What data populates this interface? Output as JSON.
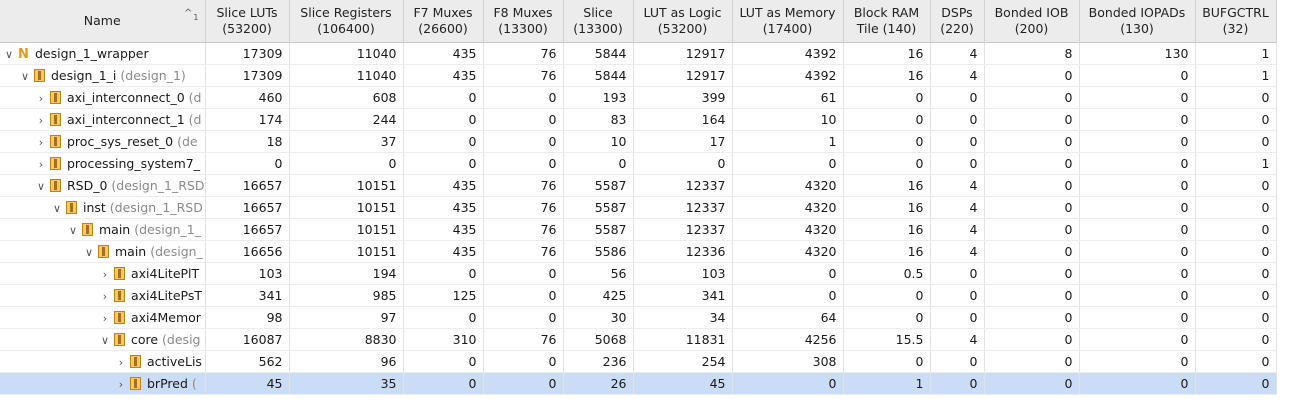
{
  "columns": [
    {
      "label": "Name",
      "sub": ""
    },
    {
      "label": "Slice LUTs",
      "sub": "(53200)"
    },
    {
      "label": "Slice Registers",
      "sub": "(106400)"
    },
    {
      "label": "F7 Muxes",
      "sub": "(26600)"
    },
    {
      "label": "F8 Muxes",
      "sub": "(13300)"
    },
    {
      "label": "Slice",
      "sub": "(13300)"
    },
    {
      "label": "LUT as Logic",
      "sub": "(53200)"
    },
    {
      "label": "LUT as Memory",
      "sub": "(17400)"
    },
    {
      "label": "Block RAM",
      "sub": "Tile (140)"
    },
    {
      "label": "DSPs",
      "sub": "(220)"
    },
    {
      "label": "Bonded IOB",
      "sub": "(200)"
    },
    {
      "label": "Bonded IOPADs",
      "sub": "(130)"
    },
    {
      "label": "BUFGCTRL",
      "sub": "(32)"
    }
  ],
  "sort_indicator": {
    "arrow": "^",
    "rank": "1"
  },
  "rows": [
    {
      "depth": 0,
      "expanded": true,
      "icon": "netlist-top-icon",
      "name": "design_1_wrapper",
      "hint": "",
      "values": [
        "17309",
        "11040",
        "435",
        "76",
        "5844",
        "12917",
        "4392",
        "16",
        "4",
        "8",
        "130",
        "1"
      ]
    },
    {
      "depth": 1,
      "expanded": true,
      "icon": "module-icon",
      "name": "design_1_i",
      "hint": " (design_1)",
      "values": [
        "17309",
        "11040",
        "435",
        "76",
        "5844",
        "12917",
        "4392",
        "16",
        "4",
        "0",
        "0",
        "1"
      ]
    },
    {
      "depth": 2,
      "expanded": false,
      "icon": "module-icon",
      "name": "axi_interconnect_0",
      "hint": " (d",
      "values": [
        "460",
        "608",
        "0",
        "0",
        "193",
        "399",
        "61",
        "0",
        "0",
        "0",
        "0",
        "0"
      ]
    },
    {
      "depth": 2,
      "expanded": false,
      "icon": "module-icon",
      "name": "axi_interconnect_1",
      "hint": " (d",
      "values": [
        "174",
        "244",
        "0",
        "0",
        "83",
        "164",
        "10",
        "0",
        "0",
        "0",
        "0",
        "0"
      ]
    },
    {
      "depth": 2,
      "expanded": false,
      "icon": "module-icon",
      "name": "proc_sys_reset_0",
      "hint": " (de",
      "values": [
        "18",
        "37",
        "0",
        "0",
        "10",
        "17",
        "1",
        "0",
        "0",
        "0",
        "0",
        "0"
      ]
    },
    {
      "depth": 2,
      "expanded": false,
      "icon": "module-icon",
      "name": "processing_system7_",
      "hint": "",
      "values": [
        "0",
        "0",
        "0",
        "0",
        "0",
        "0",
        "0",
        "0",
        "0",
        "0",
        "0",
        "1"
      ]
    },
    {
      "depth": 2,
      "expanded": true,
      "icon": "module-icon",
      "name": "RSD_0",
      "hint": " (design_1_RSD",
      "values": [
        "16657",
        "10151",
        "435",
        "76",
        "5587",
        "12337",
        "4320",
        "16",
        "4",
        "0",
        "0",
        "0"
      ]
    },
    {
      "depth": 3,
      "expanded": true,
      "icon": "module-icon",
      "name": "inst",
      "hint": " (design_1_RSD",
      "values": [
        "16657",
        "10151",
        "435",
        "76",
        "5587",
        "12337",
        "4320",
        "16",
        "4",
        "0",
        "0",
        "0"
      ]
    },
    {
      "depth": 4,
      "expanded": true,
      "icon": "module-icon",
      "name": "main",
      "hint": " (design_1_",
      "values": [
        "16657",
        "10151",
        "435",
        "76",
        "5587",
        "12337",
        "4320",
        "16",
        "4",
        "0",
        "0",
        "0"
      ]
    },
    {
      "depth": 5,
      "expanded": true,
      "icon": "module-icon",
      "name": "main",
      "hint": " (design_",
      "values": [
        "16656",
        "10151",
        "435",
        "76",
        "5586",
        "12336",
        "4320",
        "16",
        "4",
        "0",
        "0",
        "0"
      ]
    },
    {
      "depth": 6,
      "expanded": false,
      "icon": "module-icon",
      "name": "axi4LitePlT",
      "hint": "",
      "values": [
        "103",
        "194",
        "0",
        "0",
        "56",
        "103",
        "0",
        "0.5",
        "0",
        "0",
        "0",
        "0"
      ]
    },
    {
      "depth": 6,
      "expanded": false,
      "icon": "module-icon",
      "name": "axi4LitePsT",
      "hint": "",
      "values": [
        "341",
        "985",
        "125",
        "0",
        "425",
        "341",
        "0",
        "0",
        "0",
        "0",
        "0",
        "0"
      ]
    },
    {
      "depth": 6,
      "expanded": false,
      "icon": "module-icon",
      "name": "axi4Memor",
      "hint": "",
      "values": [
        "98",
        "97",
        "0",
        "0",
        "30",
        "34",
        "64",
        "0",
        "0",
        "0",
        "0",
        "0"
      ]
    },
    {
      "depth": 6,
      "expanded": true,
      "icon": "module-icon",
      "name": "core",
      "hint": " (desig",
      "values": [
        "16087",
        "8830",
        "310",
        "76",
        "5068",
        "11831",
        "4256",
        "15.5",
        "4",
        "0",
        "0",
        "0"
      ]
    },
    {
      "depth": 7,
      "expanded": false,
      "icon": "module-icon",
      "name": "activeLis",
      "hint": "",
      "values": [
        "562",
        "96",
        "0",
        "0",
        "236",
        "254",
        "308",
        "0",
        "0",
        "0",
        "0",
        "0"
      ]
    },
    {
      "depth": 7,
      "expanded": false,
      "icon": "module-icon",
      "name": "brPred",
      "hint": " (",
      "selected": true,
      "values": [
        "45",
        "35",
        "0",
        "0",
        "26",
        "45",
        "0",
        "1",
        "0",
        "0",
        "0",
        "0"
      ]
    }
  ]
}
